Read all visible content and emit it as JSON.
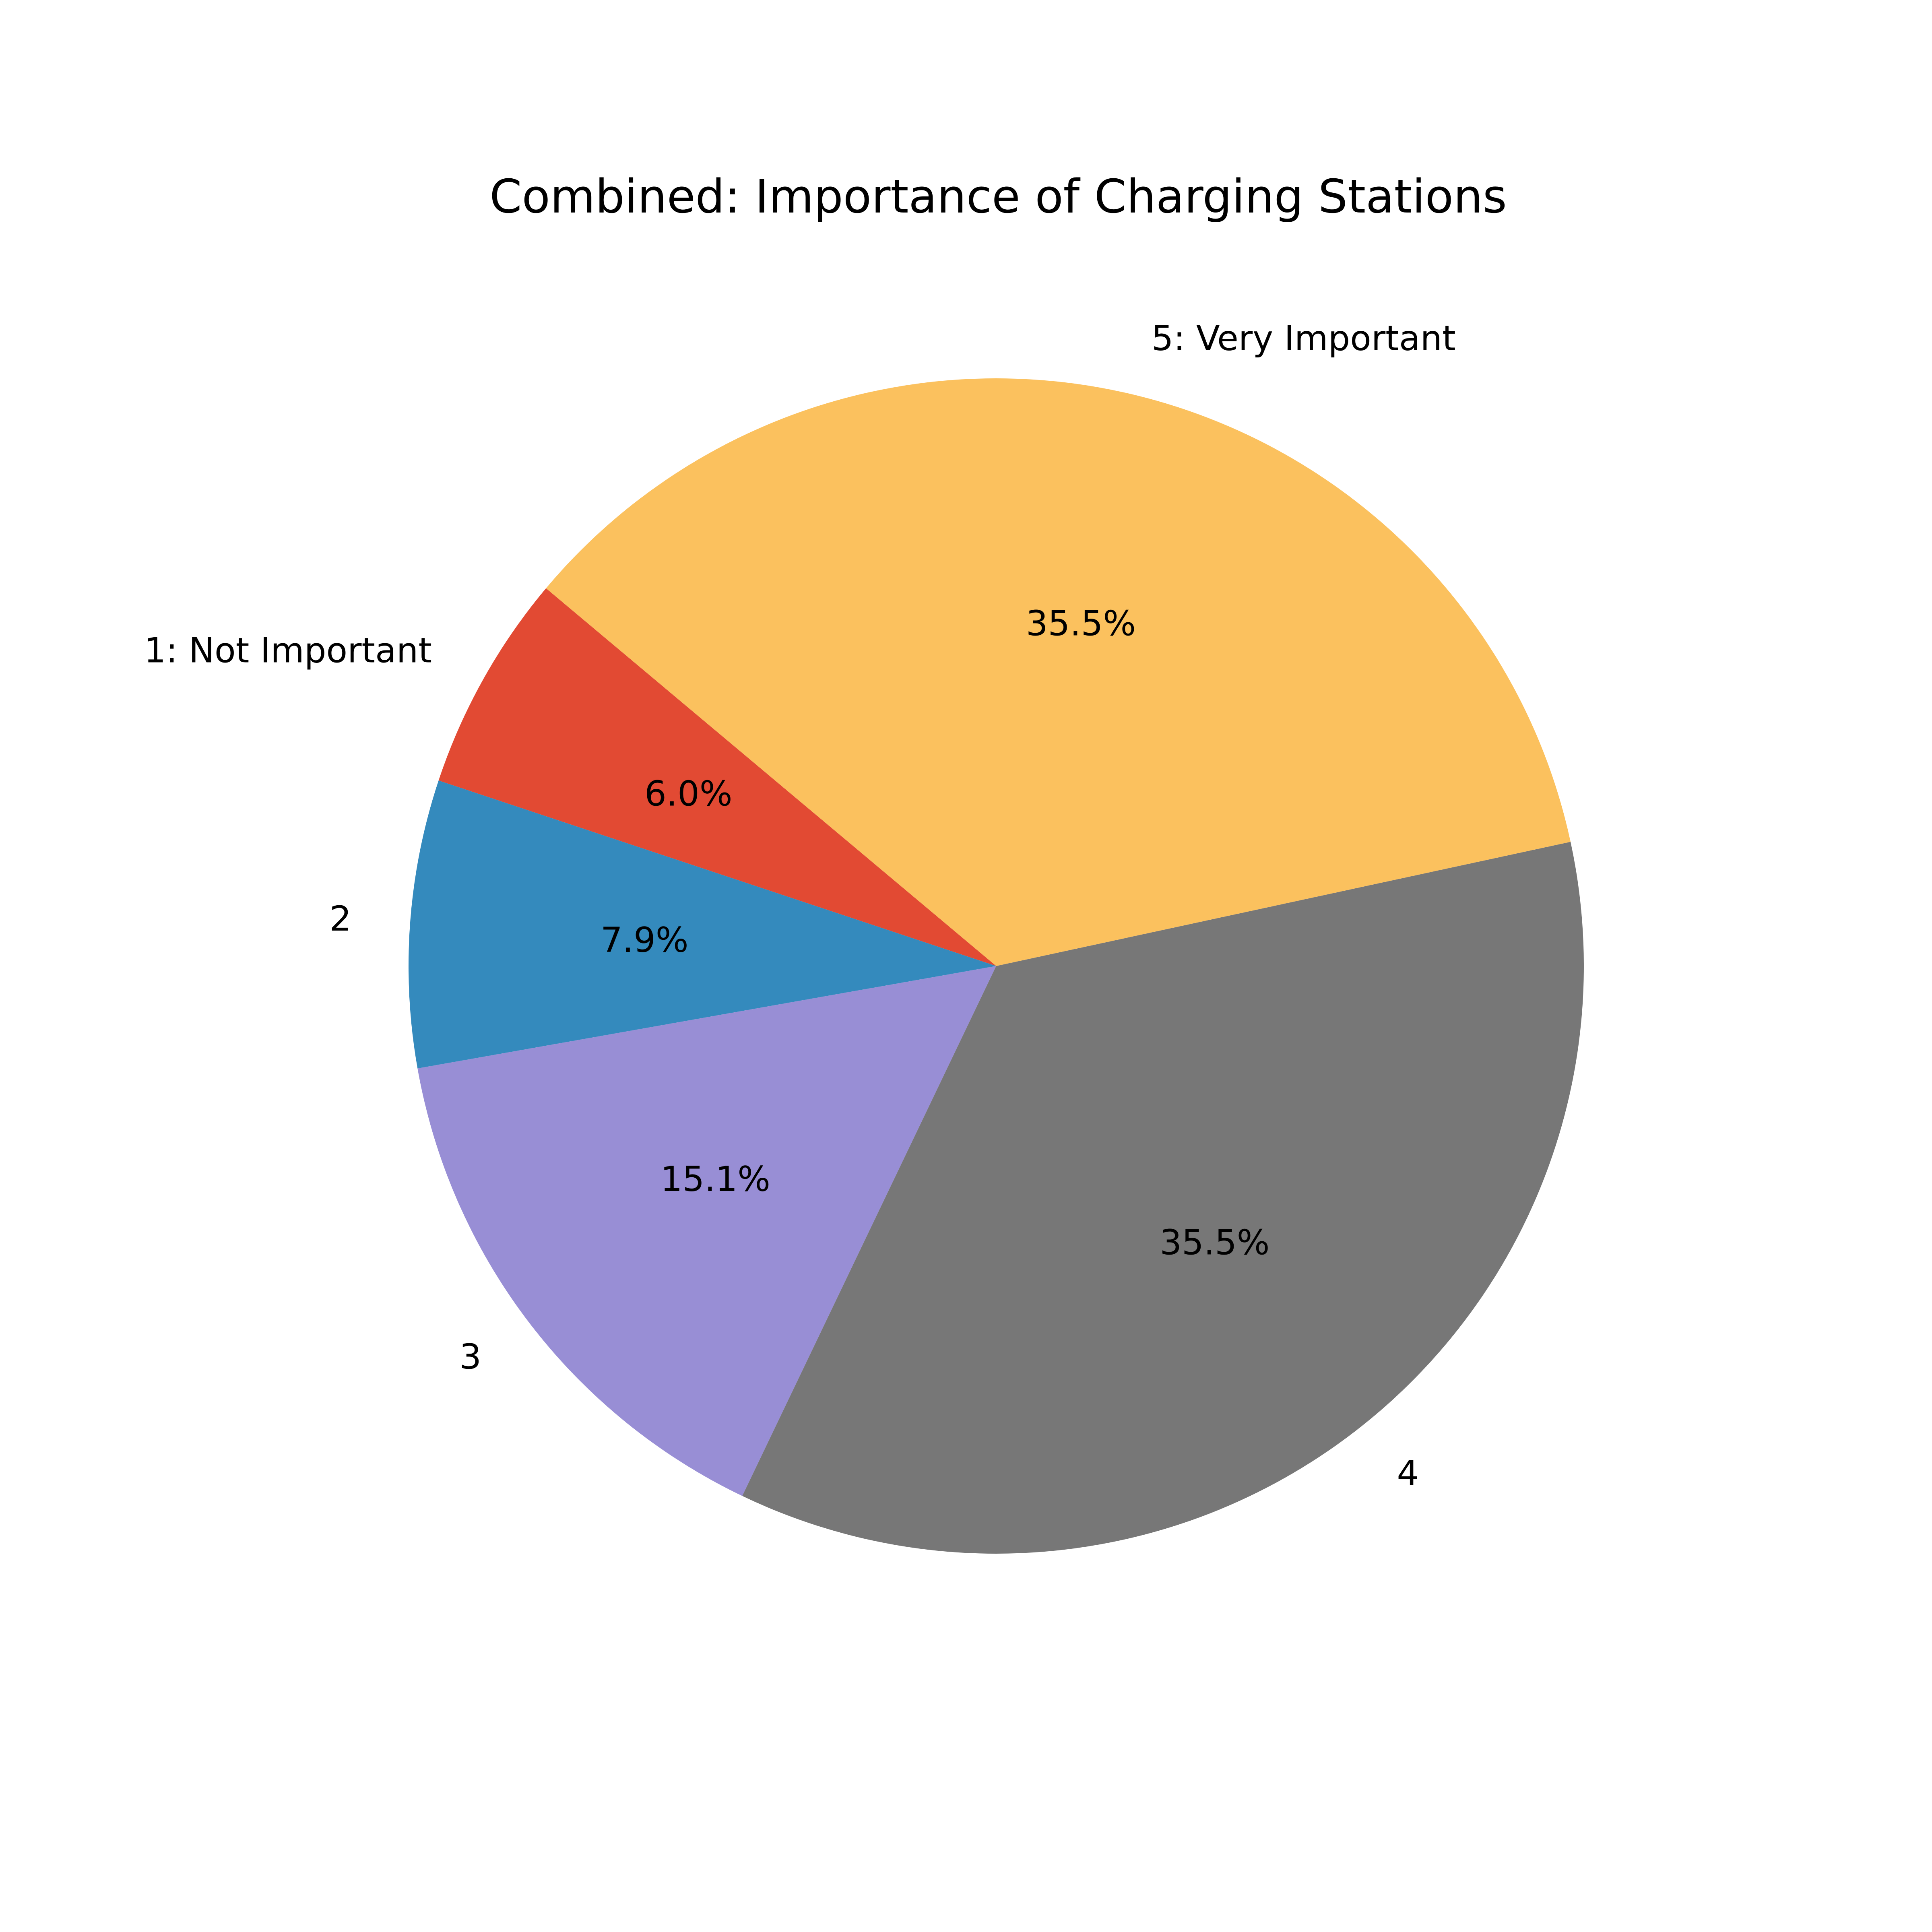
{
  "chart_data": {
    "type": "pie",
    "title": "Combined: Importance of Charging Stations",
    "start_angle_deg": 140,
    "direction": "counterclockwise",
    "slices": [
      {
        "label": "1: Not Important",
        "value": 6.0,
        "pct_label": "6.0%",
        "color": "#E24A33"
      },
      {
        "label": "2",
        "value": 7.9,
        "pct_label": "7.9%",
        "color": "#348ABD"
      },
      {
        "label": "3",
        "value": 15.1,
        "pct_label": "15.1%",
        "color": "#988ED5"
      },
      {
        "label": "4",
        "value": 35.5,
        "pct_label": "35.5%",
        "color": "#777777"
      },
      {
        "label": "5: Very Important",
        "value": 35.5,
        "pct_label": "35.5%",
        "color": "#FBC15E"
      }
    ]
  }
}
